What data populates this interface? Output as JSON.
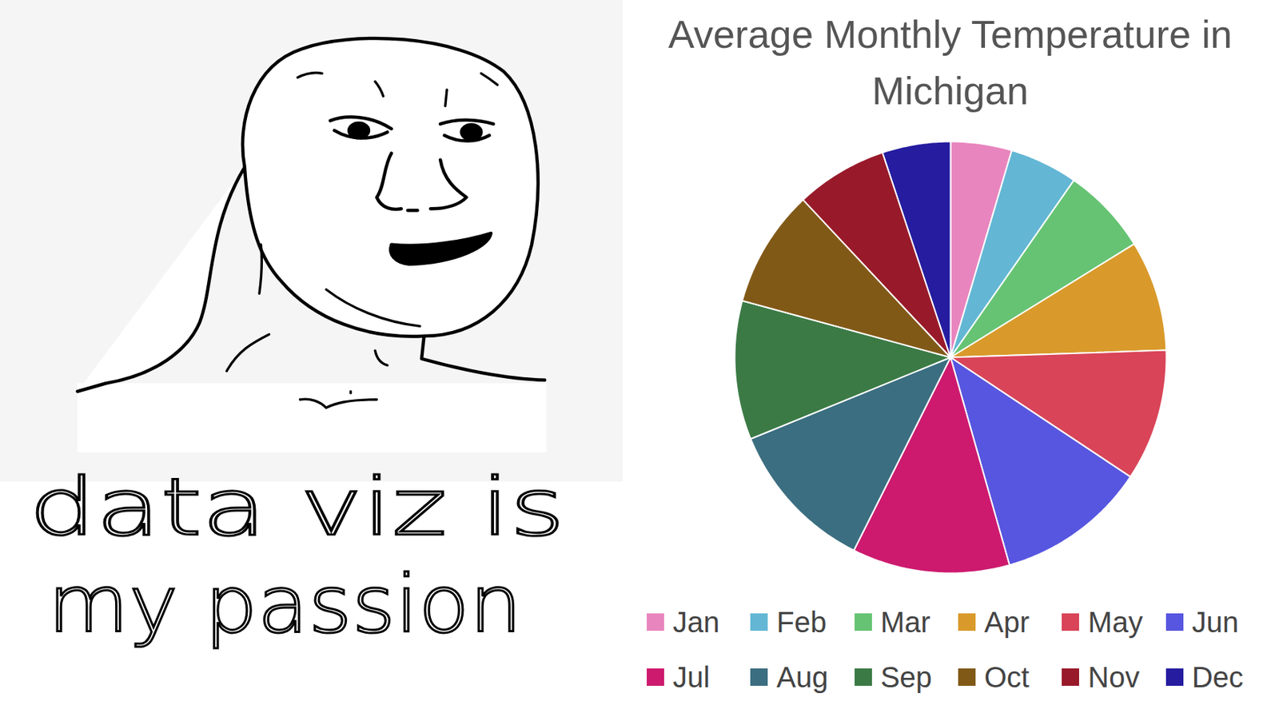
{
  "chart_data": {
    "type": "pie",
    "title": "Average Monthly Temperature in Michigan",
    "categories": [
      "Jan",
      "Feb",
      "Mar",
      "Apr",
      "May",
      "Jun",
      "Jul",
      "Aug",
      "Sep",
      "Oct",
      "Nov",
      "Dec"
    ],
    "values": [
      26,
      29,
      37,
      47,
      56,
      64,
      67,
      65,
      59,
      50,
      39,
      29
    ],
    "colors": [
      "#e985be",
      "#63b7d4",
      "#66c373",
      "#d99a2b",
      "#d94458",
      "#5756e0",
      "#cd1a6e",
      "#3b6e80",
      "#3b7a45",
      "#815917",
      "#981a2a",
      "#251ca0"
    ],
    "legend": "bottom"
  },
  "caption": {
    "lines": [
      "data viz is",
      "my passion"
    ]
  }
}
